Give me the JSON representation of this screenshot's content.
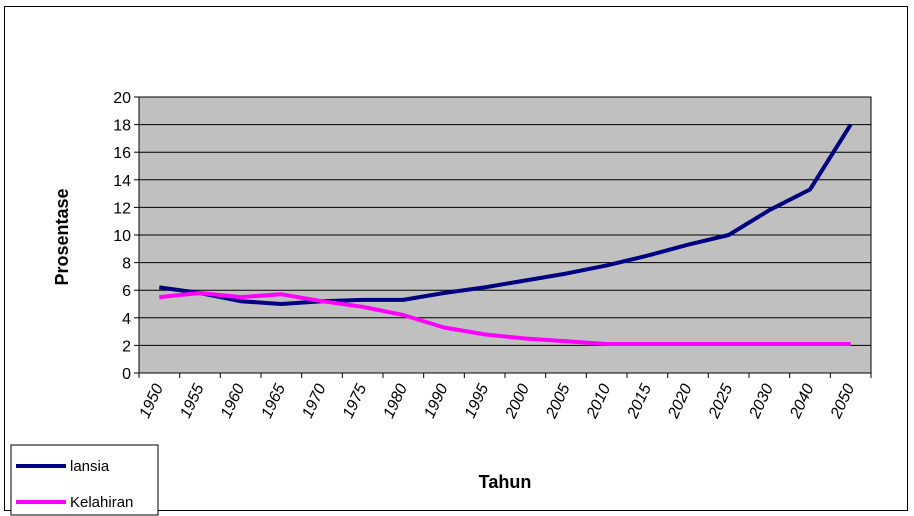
{
  "chart_data": {
    "type": "line",
    "title": "",
    "xlabel": "Tahun",
    "ylabel": "Prosentase",
    "categories": [
      "1950",
      "1955",
      "1960",
      "1965",
      "1970",
      "1975",
      "1980",
      "1990",
      "1995",
      "2000",
      "2005",
      "2010",
      "2015",
      "2020",
      "2025",
      "2030",
      "2040",
      "2050"
    ],
    "ylim": [
      0,
      20
    ],
    "yticks": [
      0,
      2,
      4,
      6,
      8,
      10,
      12,
      14,
      16,
      18,
      20
    ],
    "grid": true,
    "legend_position": "bottom-left",
    "series": [
      {
        "name": "lansia",
        "color": "#000080",
        "values": [
          6.2,
          5.8,
          5.2,
          5.0,
          5.2,
          5.3,
          5.3,
          5.8,
          6.2,
          6.7,
          7.2,
          7.8,
          8.5,
          9.3,
          10.0,
          11.8,
          13.3,
          18.0
        ]
      },
      {
        "name": "Kelahiran",
        "color": "#FF00FF",
        "values": [
          5.5,
          5.8,
          5.5,
          5.7,
          5.2,
          4.8,
          4.2,
          3.3,
          2.8,
          2.5,
          2.3,
          2.1,
          2.1,
          2.1,
          2.1,
          2.1,
          2.1,
          2.1
        ]
      }
    ]
  },
  "colors": {
    "plot_background": "#C0C0C0",
    "gridline": "#000000"
  }
}
